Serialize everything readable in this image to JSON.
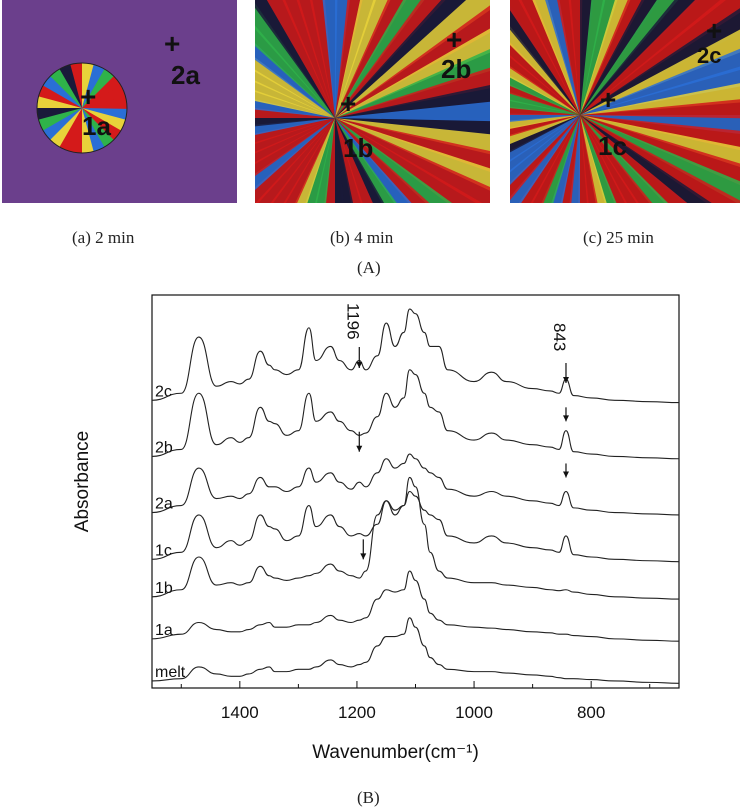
{
  "panel_a": {
    "label": "(A)",
    "images": [
      {
        "caption": "(a) 2 min",
        "points": [
          {
            "label": "1a"
          },
          {
            "label": "2a"
          }
        ]
      },
      {
        "caption": "(b) 4 min",
        "points": [
          {
            "label": "1b"
          },
          {
            "label": "2b"
          }
        ]
      },
      {
        "caption": "(c) 25 min",
        "points": [
          {
            "label": "1c"
          },
          {
            "label": "2c"
          }
        ]
      }
    ],
    "colors": {
      "melt_background": "#6b3f8c",
      "crystal_red": "#d41a1a",
      "crystal_green": "#2fb34a",
      "crystal_blue": "#2a6fd6",
      "crystal_yellow": "#e8d23a"
    }
  },
  "panel_b_label": "(B)",
  "chart_data": {
    "type": "line",
    "xlabel": "Wavenumber(cm⁻¹)",
    "ylabel": "Absorbance",
    "xlim": [
      1550,
      650
    ],
    "x_reversed": true,
    "xticks": [
      1400,
      1200,
      1000,
      800
    ],
    "grid": false,
    "legend": "none",
    "peak_annotations": [
      {
        "label": "1196",
        "x": 1196
      },
      {
        "label": "843",
        "x": 843
      }
    ],
    "series": [
      {
        "name": "2c",
        "offset": 6.0,
        "points": [
          [
            1550,
            0.05
          ],
          [
            1500,
            0.2
          ],
          [
            1470,
            1.4
          ],
          [
            1440,
            0.35
          ],
          [
            1415,
            0.45
          ],
          [
            1400,
            0.4
          ],
          [
            1385,
            0.5
          ],
          [
            1365,
            1.1
          ],
          [
            1350,
            0.8
          ],
          [
            1340,
            0.7
          ],
          [
            1320,
            0.6
          ],
          [
            1300,
            0.7
          ],
          [
            1282,
            1.6
          ],
          [
            1270,
            0.9
          ],
          [
            1245,
            1.2
          ],
          [
            1230,
            0.9
          ],
          [
            1210,
            0.7
          ],
          [
            1196,
            0.9
          ],
          [
            1185,
            0.7
          ],
          [
            1165,
            1.0
          ],
          [
            1150,
            1.7
          ],
          [
            1135,
            1.2
          ],
          [
            1120,
            1.5
          ],
          [
            1110,
            2.0
          ],
          [
            1100,
            1.9
          ],
          [
            1085,
            1.5
          ],
          [
            1075,
            1.2
          ],
          [
            1060,
            1.2
          ],
          [
            1045,
            0.7
          ],
          [
            1000,
            0.45
          ],
          [
            970,
            0.65
          ],
          [
            945,
            0.45
          ],
          [
            900,
            0.3
          ],
          [
            870,
            0.25
          ],
          [
            855,
            0.2
          ],
          [
            843,
            0.5
          ],
          [
            830,
            0.15
          ],
          [
            800,
            0.1
          ],
          [
            760,
            0.05
          ],
          [
            700,
            0.02
          ],
          [
            650,
            0.0
          ]
        ]
      },
      {
        "name": "2b",
        "offset": 4.8,
        "points": [
          [
            1550,
            0.05
          ],
          [
            1500,
            0.2
          ],
          [
            1470,
            1.4
          ],
          [
            1440,
            0.3
          ],
          [
            1415,
            0.45
          ],
          [
            1400,
            0.35
          ],
          [
            1385,
            0.45
          ],
          [
            1365,
            1.1
          ],
          [
            1350,
            0.8
          ],
          [
            1340,
            0.75
          ],
          [
            1320,
            0.5
          ],
          [
            1300,
            0.6
          ],
          [
            1282,
            1.4
          ],
          [
            1270,
            0.8
          ],
          [
            1245,
            1.0
          ],
          [
            1230,
            0.8
          ],
          [
            1210,
            0.6
          ],
          [
            1196,
            0.5
          ],
          [
            1185,
            0.55
          ],
          [
            1165,
            0.9
          ],
          [
            1150,
            1.4
          ],
          [
            1135,
            1.1
          ],
          [
            1120,
            1.3
          ],
          [
            1110,
            1.9
          ],
          [
            1100,
            1.8
          ],
          [
            1085,
            1.4
          ],
          [
            1075,
            1.1
          ],
          [
            1060,
            1.0
          ],
          [
            1045,
            0.6
          ],
          [
            1000,
            0.4
          ],
          [
            970,
            0.55
          ],
          [
            945,
            0.4
          ],
          [
            900,
            0.3
          ],
          [
            870,
            0.25
          ],
          [
            855,
            0.2
          ],
          [
            843,
            0.6
          ],
          [
            830,
            0.15
          ],
          [
            800,
            0.1
          ],
          [
            760,
            0.05
          ],
          [
            700,
            0.02
          ],
          [
            650,
            0.0
          ]
        ]
      },
      {
        "name": "2a",
        "offset": 3.6,
        "points": [
          [
            1550,
            0.05
          ],
          [
            1500,
            0.2
          ],
          [
            1470,
            1.0
          ],
          [
            1440,
            0.35
          ],
          [
            1415,
            0.4
          ],
          [
            1400,
            0.35
          ],
          [
            1385,
            0.45
          ],
          [
            1365,
            0.8
          ],
          [
            1350,
            0.6
          ],
          [
            1340,
            0.6
          ],
          [
            1320,
            0.5
          ],
          [
            1300,
            0.6
          ],
          [
            1282,
            1.0
          ],
          [
            1270,
            0.7
          ],
          [
            1245,
            0.9
          ],
          [
            1230,
            0.7
          ],
          [
            1210,
            0.55
          ],
          [
            1196,
            0.7
          ],
          [
            1185,
            0.6
          ],
          [
            1165,
            0.9
          ],
          [
            1150,
            1.2
          ],
          [
            1135,
            1.0
          ],
          [
            1120,
            1.1
          ],
          [
            1110,
            1.3
          ],
          [
            1100,
            1.2
          ],
          [
            1085,
            1.0
          ],
          [
            1075,
            0.9
          ],
          [
            1060,
            0.8
          ],
          [
            1045,
            0.55
          ],
          [
            1000,
            0.4
          ],
          [
            970,
            0.5
          ],
          [
            945,
            0.4
          ],
          [
            900,
            0.3
          ],
          [
            870,
            0.25
          ],
          [
            855,
            0.2
          ],
          [
            843,
            0.5
          ],
          [
            830,
            0.15
          ],
          [
            800,
            0.1
          ],
          [
            760,
            0.05
          ],
          [
            700,
            0.02
          ],
          [
            650,
            0.0
          ]
        ]
      },
      {
        "name": "1c",
        "offset": 2.6,
        "points": [
          [
            1550,
            0.05
          ],
          [
            1500,
            0.2
          ],
          [
            1470,
            1.0
          ],
          [
            1440,
            0.3
          ],
          [
            1415,
            0.45
          ],
          [
            1400,
            0.35
          ],
          [
            1385,
            0.45
          ],
          [
            1365,
            1.0
          ],
          [
            1350,
            0.75
          ],
          [
            1340,
            0.7
          ],
          [
            1320,
            0.45
          ],
          [
            1300,
            0.55
          ],
          [
            1282,
            1.2
          ],
          [
            1270,
            0.75
          ],
          [
            1245,
            1.0
          ],
          [
            1230,
            0.75
          ],
          [
            1210,
            0.55
          ],
          [
            1196,
            0.6
          ],
          [
            1185,
            0.55
          ],
          [
            1165,
            0.8
          ],
          [
            1150,
            1.3
          ],
          [
            1135,
            1.0
          ],
          [
            1120,
            1.2
          ],
          [
            1110,
            1.5
          ],
          [
            1100,
            1.4
          ],
          [
            1085,
            1.1
          ],
          [
            1075,
            1.0
          ],
          [
            1060,
            0.9
          ],
          [
            1045,
            0.55
          ],
          [
            1000,
            0.4
          ],
          [
            970,
            0.55
          ],
          [
            945,
            0.4
          ],
          [
            900,
            0.3
          ],
          [
            870,
            0.25
          ],
          [
            855,
            0.2
          ],
          [
            843,
            0.55
          ],
          [
            830,
            0.15
          ],
          [
            800,
            0.1
          ],
          [
            760,
            0.05
          ],
          [
            700,
            0.02
          ],
          [
            650,
            0.0
          ]
        ]
      },
      {
        "name": "1b",
        "offset": 1.8,
        "points": [
          [
            1550,
            0.05
          ],
          [
            1500,
            0.2
          ],
          [
            1470,
            0.9
          ],
          [
            1440,
            0.3
          ],
          [
            1415,
            0.35
          ],
          [
            1400,
            0.3
          ],
          [
            1385,
            0.35
          ],
          [
            1365,
            0.7
          ],
          [
            1350,
            0.5
          ],
          [
            1340,
            0.45
          ],
          [
            1320,
            0.4
          ],
          [
            1300,
            0.45
          ],
          [
            1282,
            0.5
          ],
          [
            1270,
            0.55
          ],
          [
            1245,
            0.75
          ],
          [
            1230,
            0.6
          ],
          [
            1210,
            0.5
          ],
          [
            1196,
            0.45
          ],
          [
            1185,
            0.6
          ],
          [
            1165,
            1.8
          ],
          [
            1150,
            2.1
          ],
          [
            1135,
            1.9
          ],
          [
            1120,
            2.0
          ],
          [
            1110,
            2.6
          ],
          [
            1100,
            2.4
          ],
          [
            1085,
            1.6
          ],
          [
            1075,
            1.0
          ],
          [
            1060,
            0.6
          ],
          [
            1045,
            0.45
          ],
          [
            1000,
            0.35
          ],
          [
            970,
            0.35
          ],
          [
            945,
            0.3
          ],
          [
            900,
            0.25
          ],
          [
            870,
            0.2
          ],
          [
            855,
            0.18
          ],
          [
            843,
            0.2
          ],
          [
            830,
            0.15
          ],
          [
            800,
            0.1
          ],
          [
            760,
            0.05
          ],
          [
            700,
            0.02
          ],
          [
            650,
            0.0
          ]
        ]
      },
      {
        "name": "1a",
        "offset": 0.9,
        "points": [
          [
            1550,
            0.05
          ],
          [
            1500,
            0.15
          ],
          [
            1470,
            0.4
          ],
          [
            1440,
            0.25
          ],
          [
            1415,
            0.2
          ],
          [
            1400,
            0.2
          ],
          [
            1385,
            0.25
          ],
          [
            1365,
            0.35
          ],
          [
            1350,
            0.4
          ],
          [
            1340,
            0.3
          ],
          [
            1320,
            0.3
          ],
          [
            1300,
            0.35
          ],
          [
            1282,
            0.35
          ],
          [
            1270,
            0.4
          ],
          [
            1245,
            0.55
          ],
          [
            1230,
            0.45
          ],
          [
            1210,
            0.4
          ],
          [
            1196,
            0.45
          ],
          [
            1185,
            0.5
          ],
          [
            1165,
            0.9
          ],
          [
            1150,
            1.1
          ],
          [
            1135,
            1.05
          ],
          [
            1120,
            1.1
          ],
          [
            1110,
            1.5
          ],
          [
            1100,
            1.3
          ],
          [
            1085,
            0.9
          ],
          [
            1075,
            0.6
          ],
          [
            1060,
            0.45
          ],
          [
            1045,
            0.35
          ],
          [
            1000,
            0.3
          ],
          [
            970,
            0.28
          ],
          [
            945,
            0.25
          ],
          [
            900,
            0.2
          ],
          [
            870,
            0.18
          ],
          [
            855,
            0.15
          ],
          [
            843,
            0.15
          ],
          [
            830,
            0.12
          ],
          [
            800,
            0.1
          ],
          [
            760,
            0.05
          ],
          [
            700,
            0.02
          ],
          [
            650,
            0.0
          ]
        ]
      },
      {
        "name": "melt",
        "offset": 0.0,
        "points": [
          [
            1550,
            0.05
          ],
          [
            1500,
            0.1
          ],
          [
            1470,
            0.35
          ],
          [
            1440,
            0.2
          ],
          [
            1415,
            0.15
          ],
          [
            1400,
            0.15
          ],
          [
            1385,
            0.2
          ],
          [
            1365,
            0.3
          ],
          [
            1350,
            0.35
          ],
          [
            1340,
            0.25
          ],
          [
            1320,
            0.25
          ],
          [
            1300,
            0.3
          ],
          [
            1282,
            0.3
          ],
          [
            1270,
            0.35
          ],
          [
            1245,
            0.5
          ],
          [
            1230,
            0.4
          ],
          [
            1210,
            0.35
          ],
          [
            1196,
            0.4
          ],
          [
            1185,
            0.45
          ],
          [
            1165,
            0.8
          ],
          [
            1150,
            1.0
          ],
          [
            1135,
            1.0
          ],
          [
            1120,
            1.05
          ],
          [
            1110,
            1.4
          ],
          [
            1100,
            1.2
          ],
          [
            1085,
            0.8
          ],
          [
            1075,
            0.55
          ],
          [
            1060,
            0.4
          ],
          [
            1045,
            0.3
          ],
          [
            1000,
            0.25
          ],
          [
            970,
            0.25
          ],
          [
            945,
            0.22
          ],
          [
            900,
            0.18
          ],
          [
            870,
            0.15
          ],
          [
            855,
            0.12
          ],
          [
            843,
            0.1
          ],
          [
            830,
            0.1
          ],
          [
            800,
            0.08
          ],
          [
            760,
            0.05
          ],
          [
            700,
            0.02
          ],
          [
            650,
            0.0
          ]
        ]
      }
    ]
  }
}
